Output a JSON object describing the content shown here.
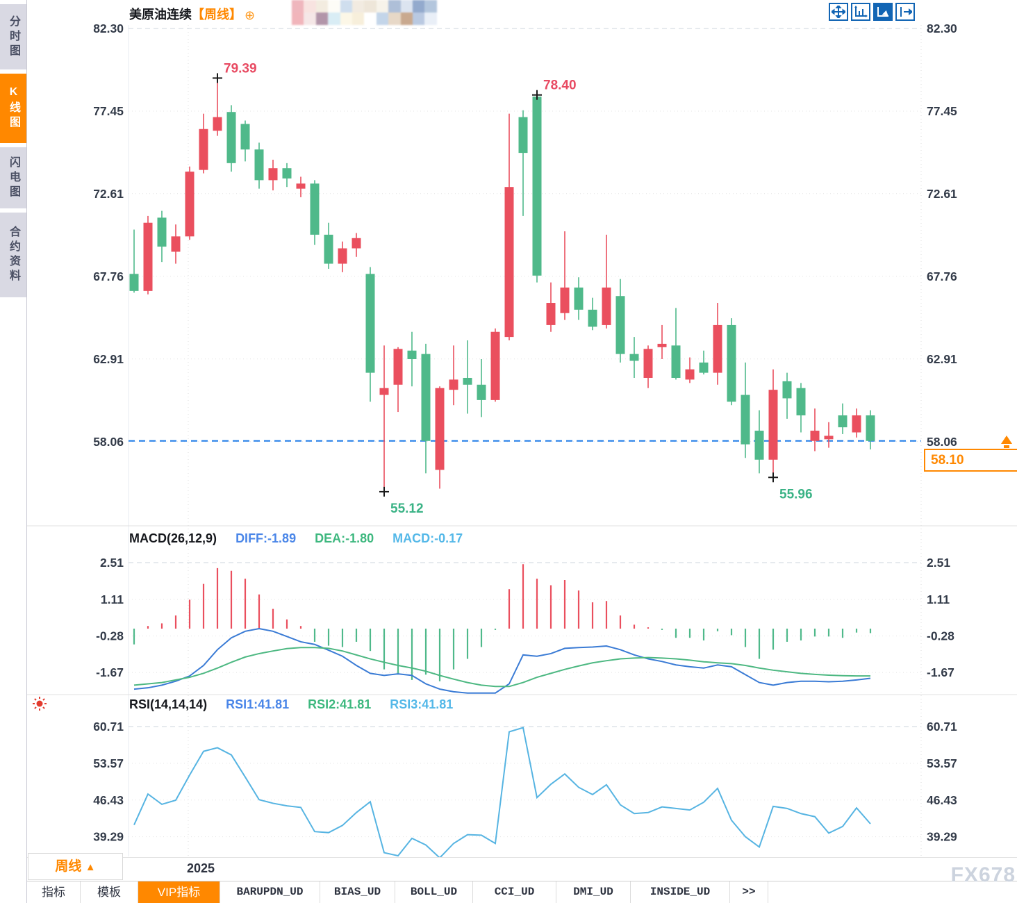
{
  "header": {
    "title": "美原油连续",
    "period_tag": "【周线】",
    "plus_icon": "⊕",
    "censored_colors": [
      "#efb6bd",
      "#f8e3e0",
      "#f3ece0",
      "#fdfcf7",
      "#cfdeee",
      "#f2ebe1",
      "#eee6d9",
      "#f7f3ea",
      "#aebfd8",
      "#dce4f0",
      "#93aacd",
      "#b3c6dd",
      "#f1b5bb",
      "#f5e7e7",
      "#b295a9",
      "#d9edf5",
      "#fcf7e7",
      "#f7efdb",
      "#ffffff",
      "#c3d5e9",
      "#e7d8c7",
      "#c9a98f",
      "#b9c9e1",
      "#e9eff7"
    ]
  },
  "sidebar": {
    "items": [
      {
        "label": "分时图",
        "active": false
      },
      {
        "label": "K线图",
        "active": true
      },
      {
        "label": "闪电图",
        "active": false
      },
      {
        "label": "合约资料",
        "active": false
      }
    ]
  },
  "toolbar": {
    "icons": [
      {
        "name": "move-crosshair-icon",
        "active": false
      },
      {
        "name": "axis-scale-icon",
        "active": false
      },
      {
        "name": "auto-scale-icon",
        "active": true
      },
      {
        "name": "scroll-to-latest-icon",
        "active": false
      }
    ]
  },
  "period_button": {
    "label": "周线",
    "arrow": "▲"
  },
  "watermark": {
    "text": "FX678"
  },
  "bottom_tabs": {
    "items": [
      {
        "label": "指标",
        "active": false,
        "mono": false
      },
      {
        "label": "模板",
        "active": false,
        "mono": false
      },
      {
        "label": "VIP指标",
        "active": true,
        "mono": false
      },
      {
        "label": "BARUPDN_UD",
        "active": false,
        "mono": true
      },
      {
        "label": "BIAS_UD",
        "active": false,
        "mono": true
      },
      {
        "label": "BOLL_UD",
        "active": false,
        "mono": true
      },
      {
        "label": "CCI_UD",
        "active": false,
        "mono": true
      },
      {
        "label": "DMI_UD",
        "active": false,
        "mono": true
      },
      {
        "label": "INSIDE_UD",
        "active": false,
        "mono": true
      },
      {
        "label": ">>",
        "active": false,
        "mono": true
      }
    ]
  },
  "colors": {
    "up": "#ea4f5e",
    "down": "#4fb98a",
    "diff_line": "#3a7bd5",
    "dea_line": "#4db882",
    "rsi_line": "#56b4e2",
    "accent_orange": "#ff8800",
    "icon_blue": "#1265b4",
    "annotation_high": "#e84a62",
    "annotation_low": "#3bb386",
    "current_line": "#1f7ce8",
    "axis_text": "#333b49"
  },
  "chart_data": {
    "type": "candlestick",
    "title": "美原油连续 周线 (US Crude Oil Continuous, weekly)",
    "price_ticks": [
      82.3,
      77.45,
      72.61,
      67.76,
      62.91,
      58.06
    ],
    "current_price": 58.1,
    "current_price_label": "58.10",
    "x_year_label": "2025",
    "x_year_index": 4,
    "candles": [
      [
        67.9,
        70.5,
        66.8,
        66.9
      ],
      [
        66.9,
        71.3,
        66.7,
        70.9
      ],
      [
        71.2,
        71.6,
        68.6,
        69.5
      ],
      [
        69.2,
        70.8,
        68.5,
        70.1
      ],
      [
        70.1,
        74.2,
        69.9,
        73.9
      ],
      [
        74.0,
        77.3,
        73.8,
        76.4
      ],
      [
        76.3,
        79.39,
        76.0,
        77.1
      ],
      [
        77.4,
        77.8,
        73.9,
        74.4
      ],
      [
        76.7,
        76.9,
        74.5,
        75.2
      ],
      [
        75.2,
        75.6,
        72.9,
        73.4
      ],
      [
        73.4,
        74.6,
        72.8,
        74.1
      ],
      [
        74.1,
        74.4,
        73.0,
        73.5
      ],
      [
        72.9,
        73.6,
        72.4,
        73.2
      ],
      [
        73.2,
        73.4,
        69.6,
        70.2
      ],
      [
        70.2,
        70.9,
        68.2,
        68.5
      ],
      [
        68.5,
        69.8,
        68.0,
        69.4
      ],
      [
        69.4,
        70.3,
        68.9,
        70.0
      ],
      [
        67.9,
        68.3,
        60.4,
        62.1
      ],
      [
        60.8,
        63.7,
        55.12,
        61.2
      ],
      [
        61.4,
        63.6,
        59.8,
        63.5
      ],
      [
        63.4,
        64.5,
        61.3,
        62.9
      ],
      [
        63.2,
        63.8,
        56.2,
        58.1
      ],
      [
        56.4,
        61.3,
        55.3,
        61.2
      ],
      [
        61.1,
        63.7,
        60.2,
        61.7
      ],
      [
        61.8,
        64.0,
        59.7,
        61.4
      ],
      [
        61.4,
        62.9,
        59.5,
        60.5
      ],
      [
        60.5,
        64.7,
        60.4,
        64.5
      ],
      [
        64.2,
        77.3,
        64.0,
        73.0
      ],
      [
        77.1,
        77.5,
        71.3,
        75.0
      ],
      [
        78.3,
        78.4,
        67.4,
        67.8
      ],
      [
        64.9,
        67.4,
        64.5,
        66.2
      ],
      [
        65.6,
        70.4,
        65.2,
        67.1
      ],
      [
        67.1,
        67.7,
        65.2,
        65.8
      ],
      [
        65.8,
        66.5,
        64.6,
        64.8
      ],
      [
        64.9,
        70.2,
        64.7,
        67.1
      ],
      [
        66.6,
        67.6,
        62.7,
        63.2
      ],
      [
        63.2,
        64.2,
        61.8,
        62.8
      ],
      [
        61.8,
        63.7,
        61.2,
        63.5
      ],
      [
        63.6,
        64.9,
        62.9,
        63.8
      ],
      [
        63.7,
        65.9,
        61.7,
        61.8
      ],
      [
        61.7,
        63.0,
        61.5,
        62.3
      ],
      [
        62.7,
        63.4,
        62.0,
        62.1
      ],
      [
        62.1,
        66.2,
        61.4,
        64.9
      ],
      [
        64.9,
        65.3,
        60.2,
        60.4
      ],
      [
        60.8,
        62.7,
        57.1,
        57.9
      ],
      [
        58.7,
        59.9,
        56.2,
        57.0
      ],
      [
        57.0,
        62.3,
        55.96,
        61.1
      ],
      [
        61.6,
        62.1,
        59.4,
        60.6
      ],
      [
        61.2,
        61.5,
        58.6,
        59.6
      ],
      [
        58.1,
        60.0,
        57.5,
        58.7
      ],
      [
        58.2,
        59.2,
        57.7,
        58.4
      ],
      [
        59.6,
        60.3,
        58.5,
        58.9
      ],
      [
        58.6,
        60.0,
        58.3,
        59.6
      ],
      [
        59.6,
        59.9,
        57.6,
        58.1
      ]
    ],
    "annotations": [
      {
        "index": 6,
        "price": 79.39,
        "label": "79.39",
        "role": "high"
      },
      {
        "index": 29,
        "price": 78.4,
        "label": "78.40",
        "role": "high"
      },
      {
        "index": 18,
        "price": 55.12,
        "label": "55.12",
        "role": "low"
      },
      {
        "index": 46,
        "price": 55.96,
        "label": "55.96",
        "role": "low"
      }
    ],
    "macd": {
      "title": "MACD(26,12,9)",
      "diff_label": "DIFF:-1.89",
      "dea_label": "DEA:-1.80",
      "macd_label": "MACD:-0.17",
      "ticks": [
        2.51,
        1.11,
        -0.28,
        -1.67
      ],
      "hist": [
        -0.6,
        0.1,
        0.2,
        0.5,
        1.1,
        1.7,
        2.3,
        2.2,
        1.9,
        1.3,
        0.75,
        0.35,
        0.1,
        -0.5,
        -0.65,
        -0.7,
        -0.5,
        -0.85,
        -1.55,
        -1.75,
        -1.95,
        -1.75,
        -2.0,
        -1.55,
        -1.15,
        -0.7,
        -0.05,
        1.5,
        2.45,
        1.9,
        1.65,
        1.85,
        1.45,
        1.0,
        1.05,
        0.5,
        0.15,
        0.05,
        -0.05,
        -0.35,
        -0.35,
        -0.45,
        -0.1,
        -0.25,
        -0.7,
        -1.15,
        -0.8,
        -0.5,
        -0.45,
        -0.3,
        -0.3,
        -0.35,
        -0.15,
        -0.17
      ],
      "diff": [
        -2.3,
        -2.25,
        -2.15,
        -2.0,
        -1.8,
        -1.4,
        -0.8,
        -0.35,
        -0.1,
        0.0,
        -0.1,
        -0.3,
        -0.5,
        -0.6,
        -0.82,
        -1.05,
        -1.4,
        -1.7,
        -1.78,
        -1.72,
        -1.78,
        -2.1,
        -2.3,
        -2.4,
        -2.45,
        -2.45,
        -2.45,
        -2.1,
        -1.0,
        -1.05,
        -0.95,
        -0.75,
        -0.72,
        -0.7,
        -0.66,
        -0.8,
        -1.0,
        -1.15,
        -1.25,
        -1.38,
        -1.45,
        -1.5,
        -1.38,
        -1.45,
        -1.75,
        -2.05,
        -2.15,
        -2.05,
        -2.0,
        -2.0,
        -2.02,
        -2.0,
        -1.95,
        -1.89
      ],
      "dea": [
        -2.15,
        -2.1,
        -2.05,
        -1.95,
        -1.85,
        -1.7,
        -1.5,
        -1.28,
        -1.08,
        -0.95,
        -0.85,
        -0.76,
        -0.72,
        -0.72,
        -0.75,
        -0.85,
        -1.0,
        -1.15,
        -1.28,
        -1.4,
        -1.5,
        -1.62,
        -1.78,
        -1.92,
        -2.05,
        -2.15,
        -2.2,
        -2.2,
        -2.05,
        -1.85,
        -1.7,
        -1.55,
        -1.42,
        -1.3,
        -1.22,
        -1.15,
        -1.12,
        -1.1,
        -1.12,
        -1.15,
        -1.2,
        -1.26,
        -1.3,
        -1.33,
        -1.4,
        -1.5,
        -1.58,
        -1.64,
        -1.7,
        -1.74,
        -1.77,
        -1.79,
        -1.8,
        -1.8
      ]
    },
    "rsi": {
      "title": "RSI(14,14,14)",
      "rsi1_label": "RSI1:41.81",
      "rsi2_label": "RSI2:41.81",
      "rsi3_label": "RSI3:41.81",
      "ticks": [
        60.71,
        53.57,
        46.43,
        39.29
      ],
      "values": [
        41.6,
        47.6,
        45.6,
        46.4,
        51.3,
        55.9,
        56.6,
        55.2,
        50.9,
        46.5,
        45.8,
        45.3,
        45.0,
        40.3,
        40.1,
        41.5,
        44.0,
        46.1,
        36.2,
        35.6,
        39.0,
        37.7,
        35.2,
        38.0,
        39.7,
        39.6,
        38.0,
        59.7,
        60.5,
        46.9,
        49.5,
        51.5,
        48.9,
        47.5,
        49.4,
        45.5,
        43.8,
        44.0,
        45.1,
        44.8,
        44.5,
        46.0,
        48.7,
        42.5,
        39.3,
        37.3,
        45.2,
        44.8,
        43.8,
        43.2,
        40.0,
        41.3,
        44.9,
        41.81
      ]
    }
  }
}
